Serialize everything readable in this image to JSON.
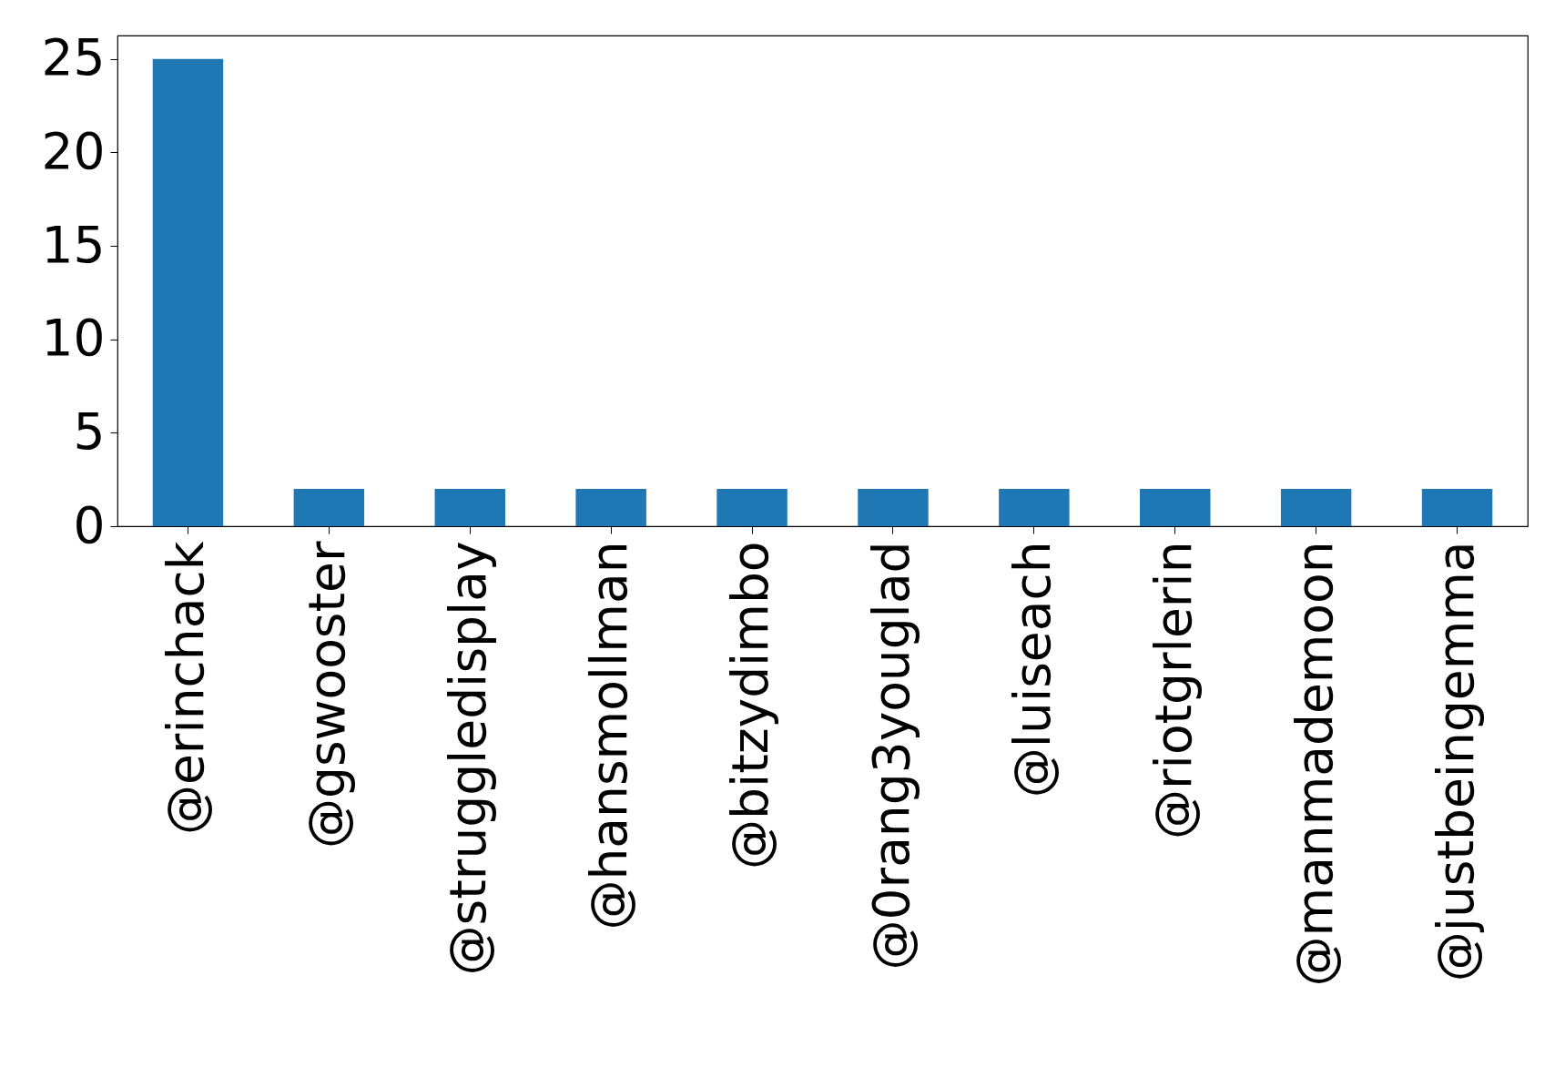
{
  "chart_data": {
    "type": "bar",
    "categories": [
      "@erinchack",
      "@gswooster",
      "@struggledisplay",
      "@hansmollman",
      "@bitzydimbo",
      "@0rang3youglad",
      "@luiseach",
      "@riotgrlerin",
      "@manmademoon",
      "@justbeingemma"
    ],
    "values": [
      25,
      2,
      2,
      2,
      2,
      2,
      2,
      2,
      2,
      2
    ],
    "color": "#1f77b4",
    "ylim": [
      0,
      26.25
    ],
    "yticks": [
      0,
      5,
      10,
      15,
      20,
      25
    ],
    "grid": false,
    "legend": false
  }
}
